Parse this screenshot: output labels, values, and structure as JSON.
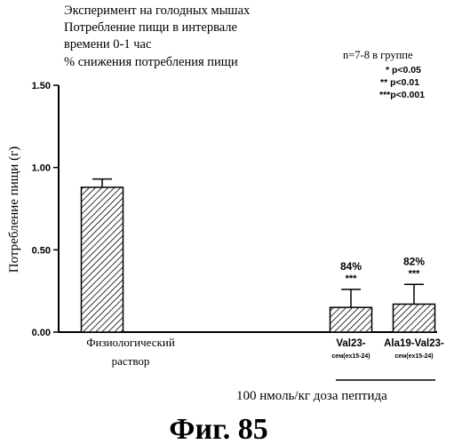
{
  "header_lines": [
    "Эксперимент на голодных мышах",
    "Потребление пищи в интервале",
    "времени 0-1 час",
    "% снижения потребления пищи"
  ],
  "group_size": "n=7-8 в группе",
  "significance_legend": [
    "* p<0.05",
    "** p<0.01",
    "***p<0.001"
  ],
  "dose_caption": "100 нмоль/кг доза пептида",
  "figure_label": "Фиг.  85",
  "colors": {
    "ink": "#000000",
    "background": "#ffffff"
  },
  "chart_data": {
    "type": "bar",
    "ylabel": "Потребление пищи (г)",
    "ylim": [
      0,
      1.5
    ],
    "yticks": [
      0,
      0.5,
      1.0,
      1.5
    ],
    "ytick_labels": [
      "0.00",
      "0.50",
      "1.00",
      "1.50"
    ],
    "grid": false,
    "legend": "none",
    "bar_fill": "diagonal-hatch",
    "categories": [
      {
        "label": "Физиологический",
        "label2": "раствор",
        "value": 0.88,
        "error": 0.05,
        "percent": "",
        "stars": ""
      },
      {
        "label": "Val23-",
        "label2": "cем(ex15-24)",
        "value": 0.15,
        "error": 0.11,
        "percent": "84%",
        "stars": "***"
      },
      {
        "label": "Ala19-Val23-",
        "label2": "cем(ex15-24)",
        "value": 0.17,
        "error": 0.12,
        "percent": "82%",
        "stars": "***"
      }
    ]
  }
}
